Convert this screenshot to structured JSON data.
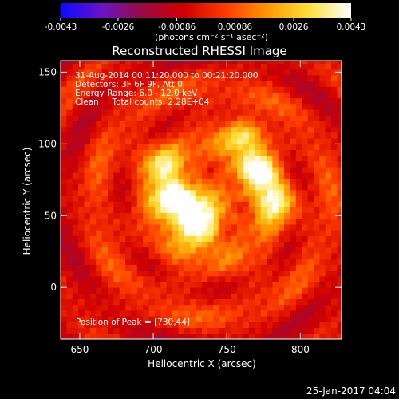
{
  "chart_data": {
    "type": "heatmap",
    "title": "Reconstructed RHESSI Image",
    "xlabel": "Heliocentric X (arcsec)",
    "ylabel": "Heliocentric Y (arcsec)",
    "xlim": [
      637,
      828
    ],
    "ylim": [
      -36,
      158
    ],
    "x_ticks": [
      650,
      700,
      750,
      800
    ],
    "y_ticks": [
      0,
      50,
      100,
      150
    ],
    "colormap": "red temperature (black-red-orange-yellow-white), negative values in blue/purple",
    "colorbar": {
      "label": "(photons cm⁻² s⁻¹ asec⁻²)",
      "range": [
        -0.0043,
        0.0043
      ],
      "tick_labels": [
        "-0.0043",
        "-0.0026",
        "-0.00086",
        "0.00086",
        "0.0026",
        "0.0043"
      ],
      "colors": [
        "#0b0bff",
        "#6a13c8",
        "#9a0a3e",
        "#d00000",
        "#ff3d00",
        "#ff9900",
        "#ffe13a",
        "#ffffff"
      ]
    },
    "info_lines": [
      "31-Aug-2014 00:11:20.000 to 00:21:20.000",
      "Detectors: 3F 6F 9F, Att 0",
      "Energy Range: 6.0 - 12.0 keV",
      "Clean     Total counts: 2.28E+04"
    ],
    "peak_label": "Position of Peak = [730,44]",
    "peak": [
      730,
      44
    ],
    "sources": [
      {
        "x": 716,
        "y": 62,
        "intensity": 1.0
      },
      {
        "x": 730,
        "y": 44,
        "intensity": 1.0
      },
      {
        "x": 770,
        "y": 82,
        "intensity": 0.8
      },
      {
        "x": 783,
        "y": 60,
        "intensity": 0.65
      },
      {
        "x": 762,
        "y": 108,
        "intensity": 0.55
      },
      {
        "x": 705,
        "y": 85,
        "intensity": 0.5
      }
    ]
  },
  "footer": {
    "timestamp": "25-Jan-2017 04:04"
  }
}
